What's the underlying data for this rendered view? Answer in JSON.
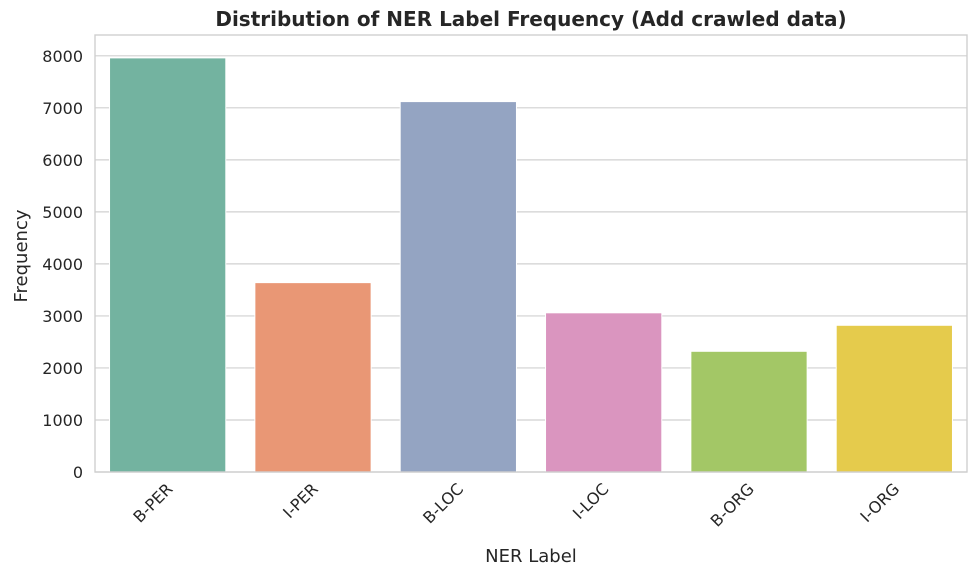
{
  "chart_data": {
    "type": "bar",
    "title": "Distribution of NER Label Frequency (Add crawled data)",
    "xlabel": "NER Label",
    "ylabel": "Frequency",
    "categories": [
      "B-PER",
      "I-PER",
      "B-LOC",
      "I-LOC",
      "B-ORG",
      "I-ORG"
    ],
    "values": [
      7960,
      3640,
      7120,
      3060,
      2320,
      2820
    ],
    "colors": [
      "#73b3a0",
      "#e99775",
      "#94a4c2",
      "#da95bf",
      "#a3c766",
      "#e5cb4c"
    ],
    "ylim": [
      0,
      8400
    ],
    "yticks": [
      0,
      1000,
      2000,
      3000,
      4000,
      5000,
      6000,
      7000,
      8000
    ],
    "grid": true,
    "legend": "none"
  }
}
